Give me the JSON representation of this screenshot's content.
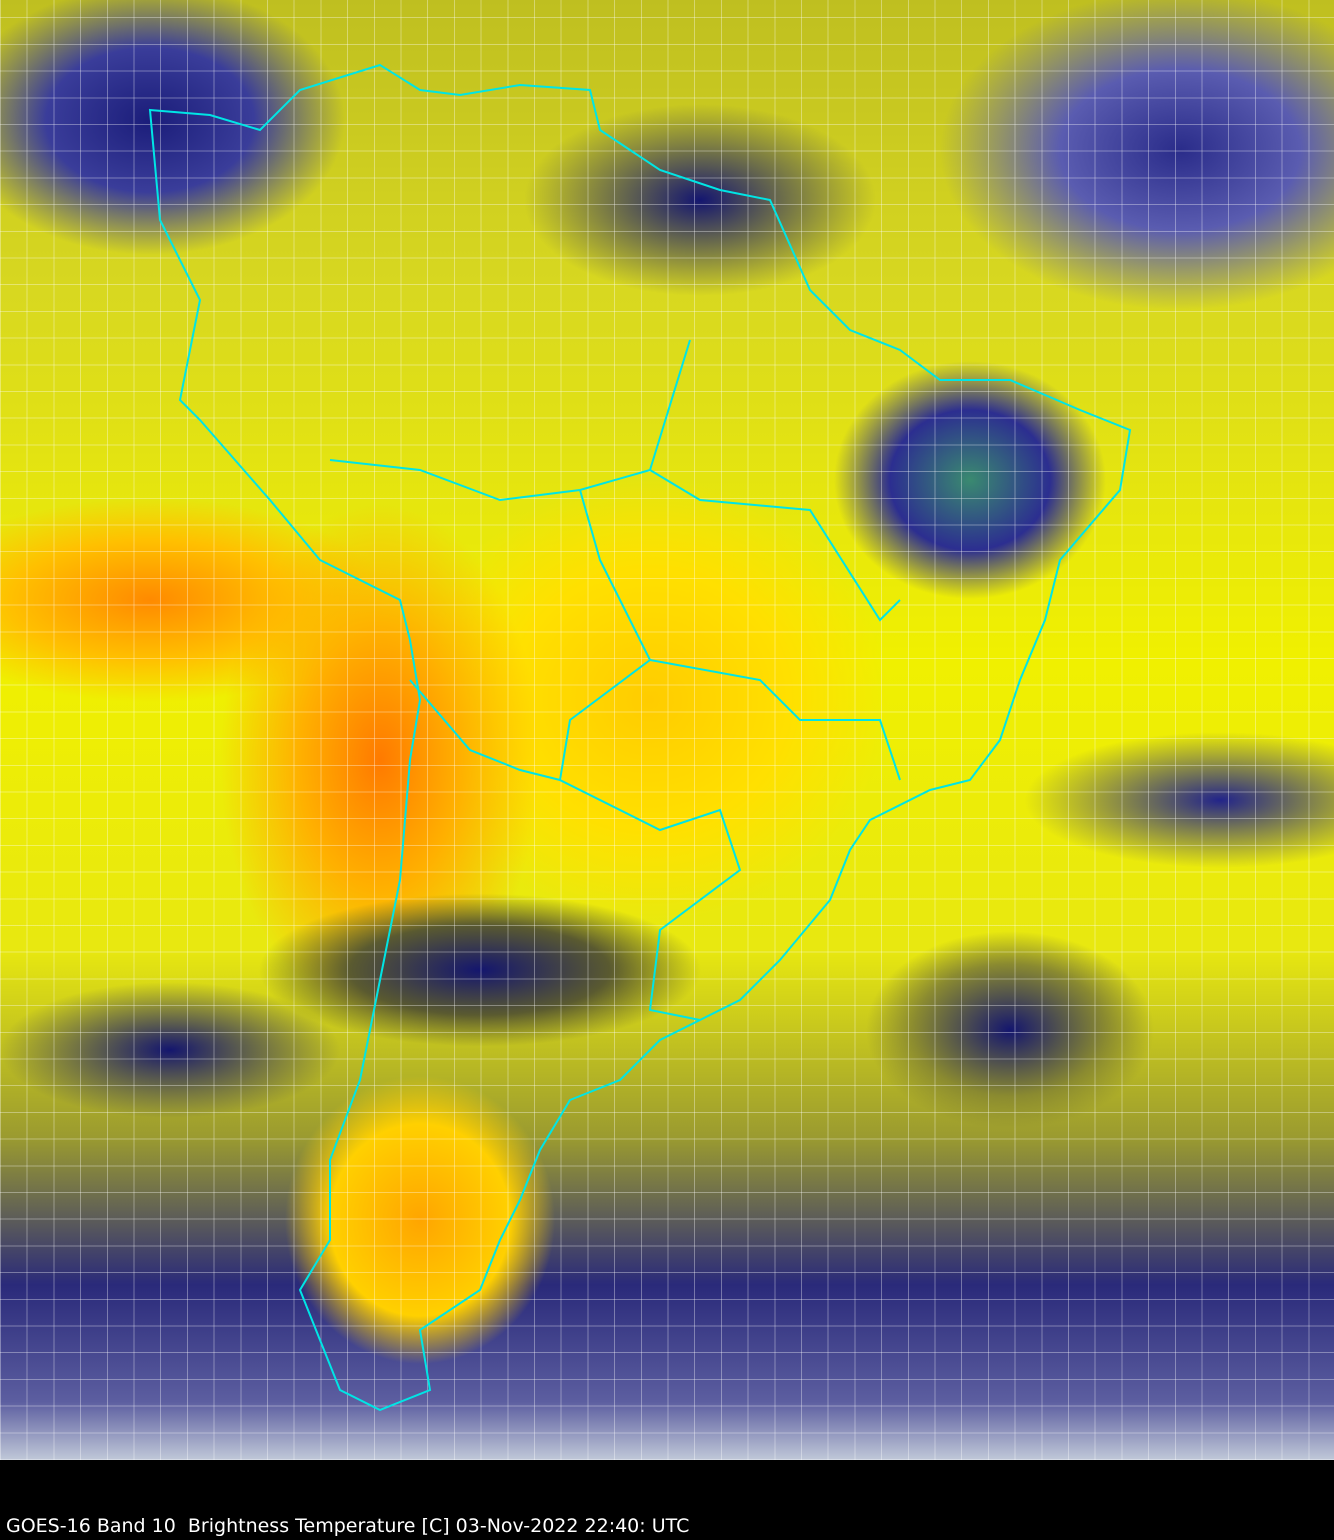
{
  "caption": "GOES-16 Band 10  Brightness Temperature [C] 03-Nov-2022 22:40: UTC",
  "colors": {
    "boundaries": "#00e5e5",
    "grid": "#ffffff",
    "background": "#000000"
  },
  "image": {
    "type": "satellite water vapor imagery",
    "region": "South America",
    "lat_lon_grid": true
  }
}
